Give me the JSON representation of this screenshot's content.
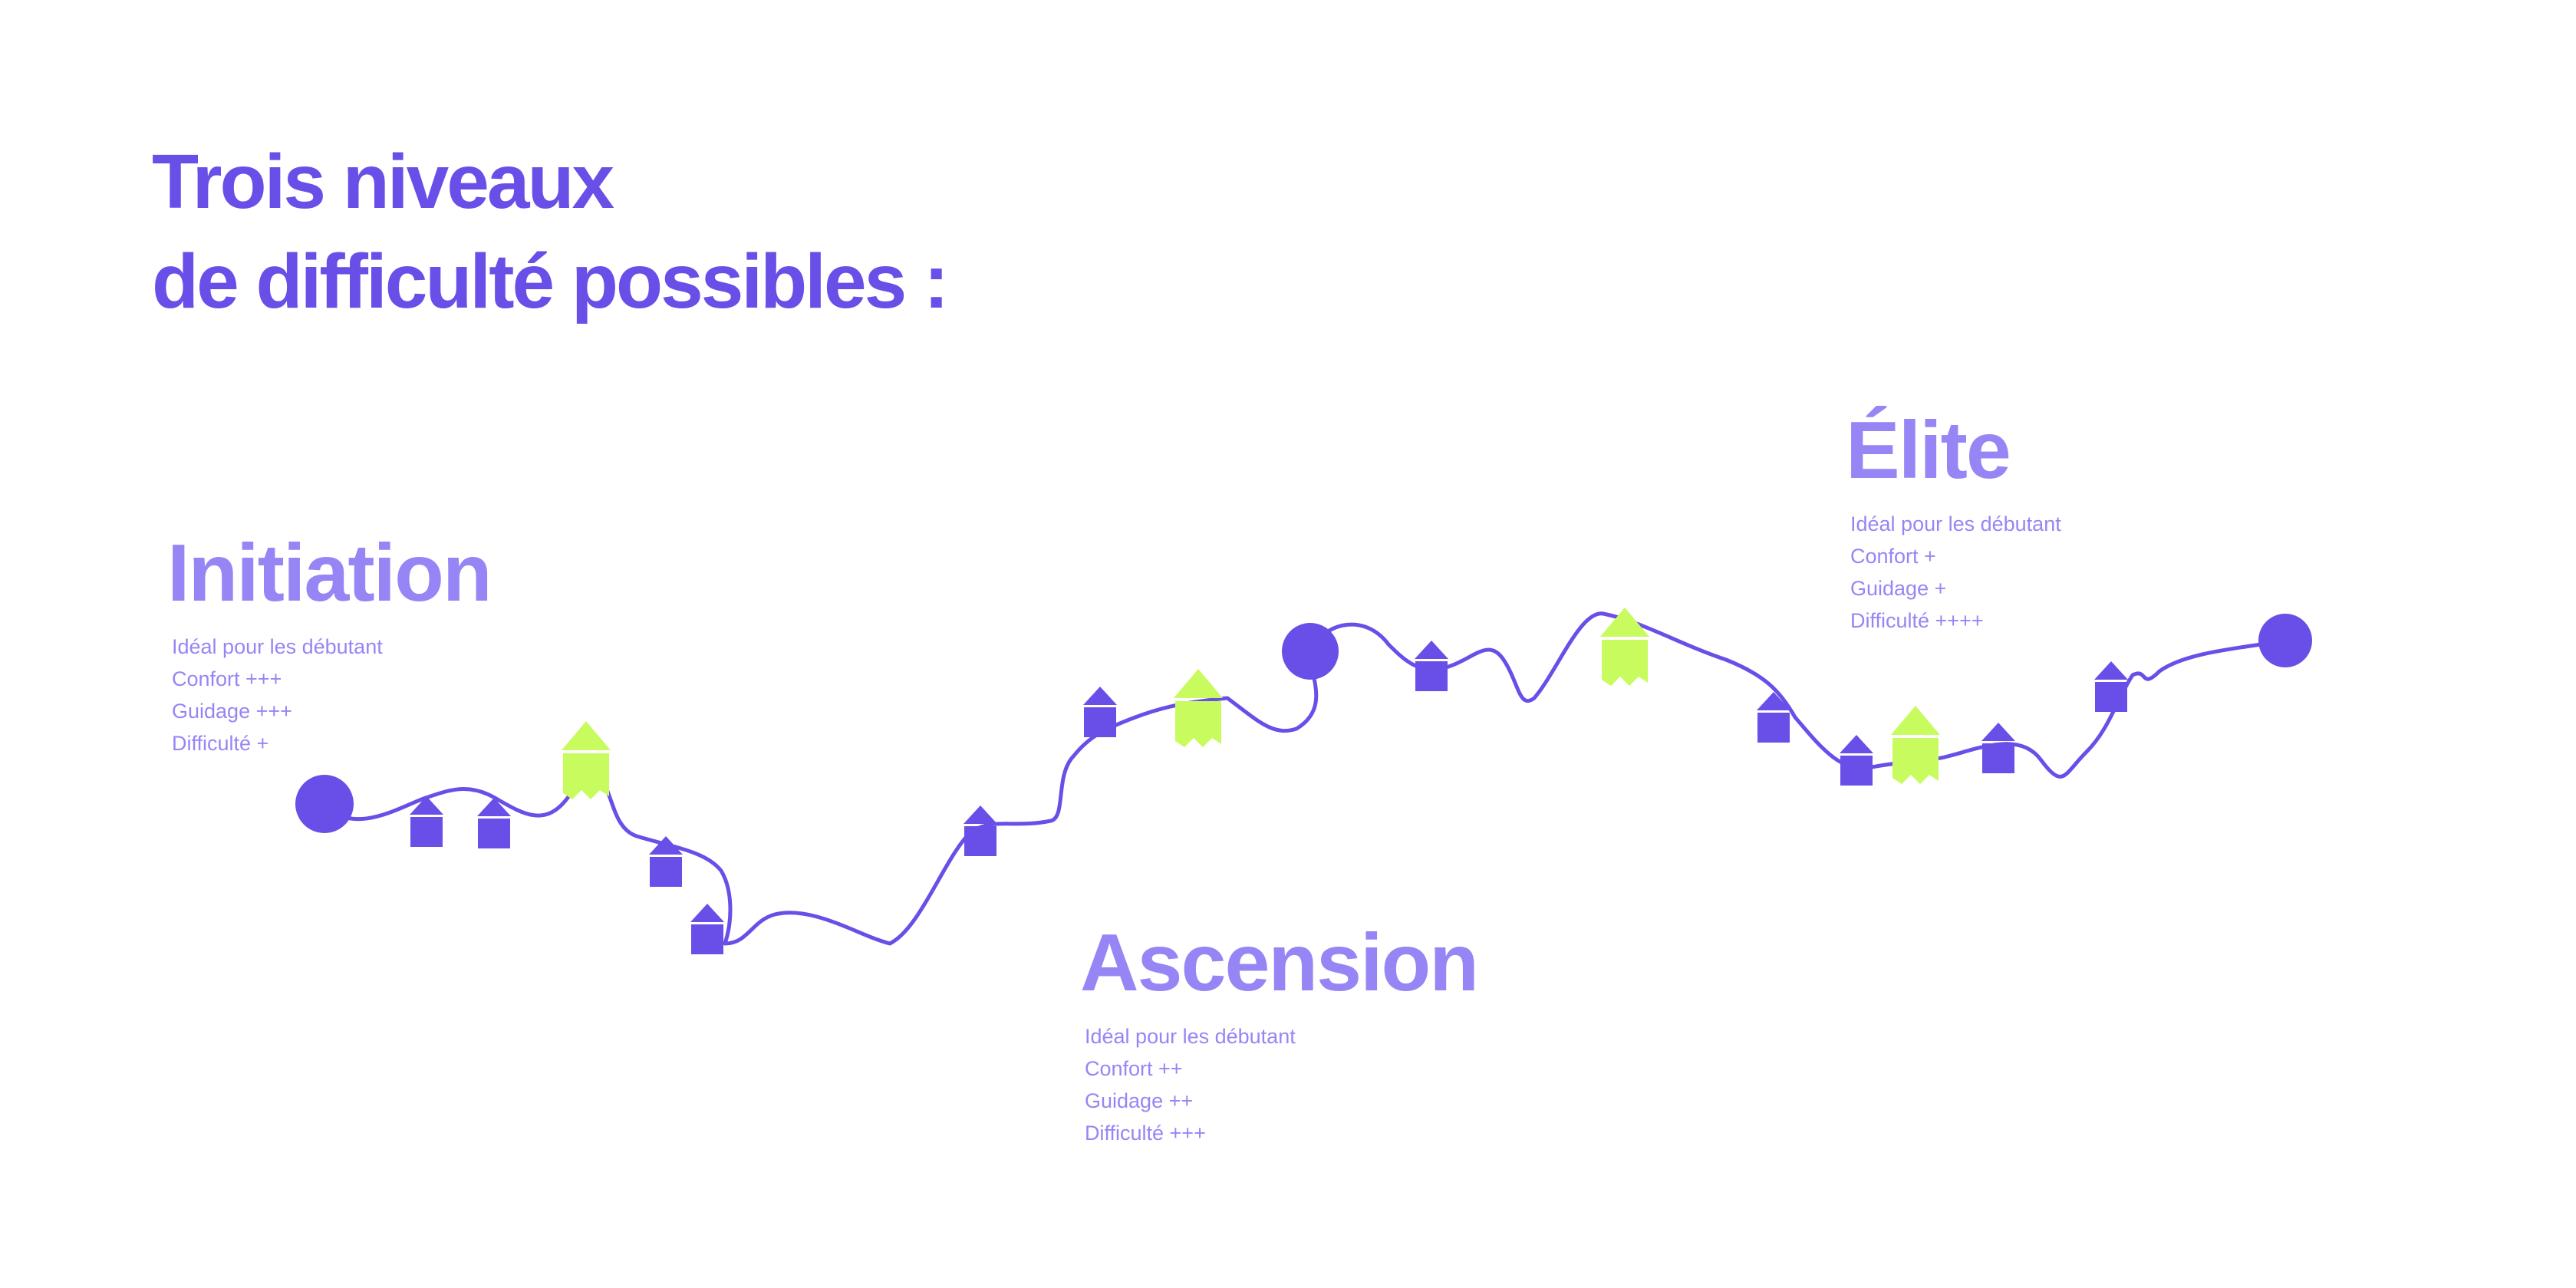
{
  "title": {
    "line1": "Trois niveaux",
    "line2": "de difficulté possibles :"
  },
  "levels": [
    {
      "name": "Initiation",
      "lines": [
        "Idéal pour les débutant",
        "Confort +++",
        "Guidage +++",
        "Difficulté +"
      ]
    },
    {
      "name": "Ascension",
      "lines": [
        "Idéal pour les débutant",
        "Confort ++",
        "Guidage ++",
        "Difficulté +++"
      ]
    },
    {
      "name": "Élite",
      "lines": [
        "Idéal pour les débutant",
        "Confort +",
        "Guidage +",
        "Difficulté ++++"
      ]
    }
  ],
  "colors": {
    "title": "#6a4ee8",
    "level_text": "#9686f5",
    "trail": "#6a4ee8",
    "marker": "#6a4ee8",
    "highlight_marker": "#c8fb5e"
  },
  "icons": {
    "endpoint": "circle-icon",
    "stop": "house-icon",
    "highlight": "house-icon-highlighted"
  }
}
